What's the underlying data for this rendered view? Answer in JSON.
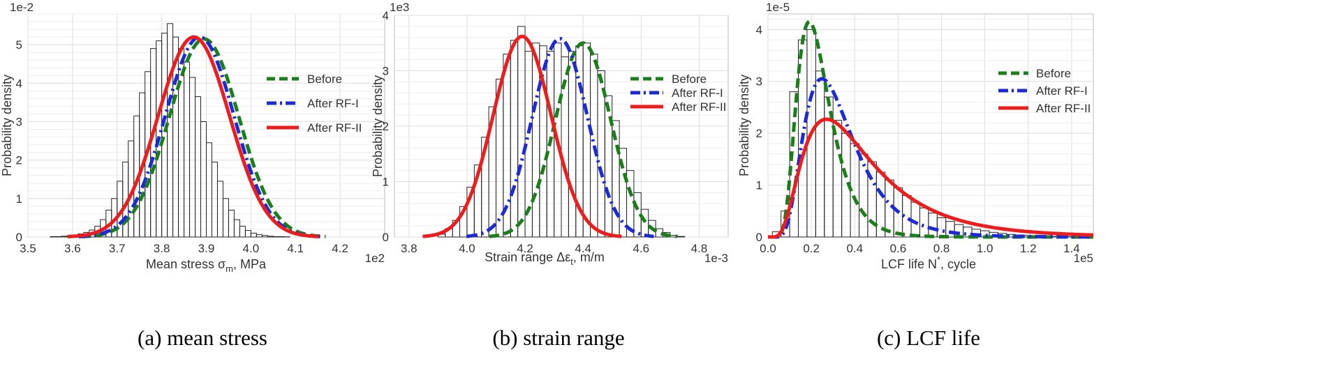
{
  "chart_data": [
    {
      "type": "histogram",
      "caption": "(a) mean stress",
      "xlabel": "Mean stress σ",
      "xlabel_sub": "m",
      "xlabel_suffix": ", MPa",
      "ylabel": "Probability density",
      "x_multiplier": "1e2",
      "y_multiplier": "1e-2",
      "xlim": [
        3.5,
        4.3
      ],
      "ylim": [
        0,
        5.8
      ],
      "xticks": [
        "3.5",
        "3.6",
        "3.7",
        "3.8",
        "3.9",
        "4.0",
        "4.1",
        "4.2"
      ],
      "yticks": [
        "0",
        "1",
        "2",
        "3",
        "4",
        "5"
      ],
      "hist": {
        "bin_start": 3.55,
        "bin_width": 0.0125,
        "values": [
          0.01,
          0.01,
          0.02,
          0.03,
          0.05,
          0.08,
          0.12,
          0.18,
          0.28,
          0.45,
          0.7,
          1.0,
          1.45,
          1.95,
          2.5,
          3.15,
          3.75,
          4.3,
          4.9,
          5.1,
          5.3,
          5.55,
          5.2,
          4.9,
          4.55,
          4.15,
          3.65,
          3.0,
          2.45,
          1.95,
          1.45,
          1.0,
          0.7,
          0.45,
          0.28,
          0.17,
          0.1,
          0.06,
          0.04,
          0.02,
          0.01,
          0.01,
          0.005,
          0.0,
          0.0,
          0.0,
          0.0,
          0.0,
          0.0,
          0.0,
          0.0,
          0.0,
          0.0
        ]
      },
      "series": [
        {
          "name": "Before",
          "dist": "normal",
          "mean": 3.895,
          "sd": 0.078,
          "peak": 5.15
        },
        {
          "name": "After RF-I",
          "dist": "normal",
          "mean": 3.885,
          "sd": 0.077,
          "peak": 5.2
        },
        {
          "name": "After RF-II",
          "dist": "normal",
          "mean": 3.872,
          "sd": 0.08,
          "peak": 5.2
        }
      ],
      "legend": [
        "Before",
        "After RF-I",
        "After RF-II"
      ],
      "legend_position": "right"
    },
    {
      "type": "histogram",
      "caption": "(b) strain range",
      "xlabel": "Strain range Δε",
      "xlabel_sub": "t",
      "xlabel_suffix": ", m/m",
      "ylabel": "Probability density",
      "x_multiplier": "1e-3",
      "y_multiplier": "1e3",
      "xlim": [
        3.75,
        4.9
      ],
      "ylim": [
        0,
        4.0
      ],
      "xticks": [
        "3.8",
        "4.0",
        "4.2",
        "4.4",
        "4.6",
        "4.8"
      ],
      "yticks": [
        "0",
        "1",
        "2",
        "3",
        "4"
      ],
      "hist": {
        "bin_start": 3.9,
        "bin_width": 0.025,
        "values": [
          0.05,
          0.15,
          0.3,
          0.55,
          0.9,
          1.3,
          1.8,
          2.35,
          2.85,
          3.3,
          3.55,
          3.8,
          3.35,
          3.5,
          3.45,
          3.35,
          3.5,
          3.25,
          3.35,
          3.45,
          3.5,
          3.3,
          3.0,
          2.55,
          2.1,
          1.6,
          1.2,
          0.8,
          0.5,
          0.3,
          0.15,
          0.08,
          0.03,
          0.01
        ]
      },
      "series": [
        {
          "name": "Before",
          "dist": "normal",
          "mean": 4.4,
          "sd": 0.095,
          "peak": 3.5
        },
        {
          "name": "After RF-I",
          "dist": "normal",
          "mean": 4.32,
          "sd": 0.095,
          "peak": 3.58
        },
        {
          "name": "After RF-II",
          "dist": "normal",
          "mean": 4.19,
          "sd": 0.1,
          "peak": 3.62
        }
      ],
      "legend": [
        "Before",
        "After RF-I",
        "After RF-II"
      ],
      "legend_position": "right"
    },
    {
      "type": "histogram",
      "caption": "(c) LCF life",
      "xlabel": "LCF life N",
      "xlabel_sup": "*",
      "xlabel_suffix": ", cycle",
      "ylabel": "Probability density",
      "x_multiplier": "1e5",
      "y_multiplier": "1e-5",
      "xlim": [
        0.0,
        1.5
      ],
      "ylim": [
        0,
        4.3
      ],
      "xticks": [
        "0.0",
        "0.2",
        "0.4",
        "0.6",
        "0.8",
        "1.0",
        "1.2",
        "1.4"
      ],
      "yticks": [
        "0",
        "1",
        "2",
        "3",
        "4"
      ],
      "hist": {
        "bin_start": 0.02,
        "bin_width": 0.04,
        "values": [
          0.1,
          0.5,
          2.8,
          3.8,
          4.0,
          3.2,
          2.7,
          2.25,
          2.0,
          1.8,
          1.6,
          1.45,
          1.25,
          1.1,
          0.95,
          0.8,
          0.67,
          0.56,
          0.46,
          0.37,
          0.3,
          0.24,
          0.19,
          0.15,
          0.12,
          0.09,
          0.07,
          0.05,
          0.04,
          0.03,
          0.02,
          0.02,
          0.01,
          0.01,
          0.005,
          0.005
        ]
      },
      "series": [
        {
          "name": "Before",
          "dist": "lognormal",
          "mu": -1.5,
          "sigma": 0.4,
          "peak": 4.15
        },
        {
          "name": "After RF-I",
          "dist": "lognormal",
          "mu": -1.18,
          "sigma": 0.46,
          "peak": 3.05
        },
        {
          "name": "After RF-II",
          "dist": "lognormal",
          "mu": -0.95,
          "sigma": 0.6,
          "peak": 2.27
        }
      ],
      "legend": [
        "Before",
        "After RF-I",
        "After RF-II"
      ],
      "legend_position": "right"
    }
  ],
  "colors": {
    "Before": "#1a7f1a",
    "After RF-I": "#1c2bd6",
    "After RF-II": "#ee1c1c",
    "grid": "#dddddd",
    "bar_edge": "#222222"
  }
}
